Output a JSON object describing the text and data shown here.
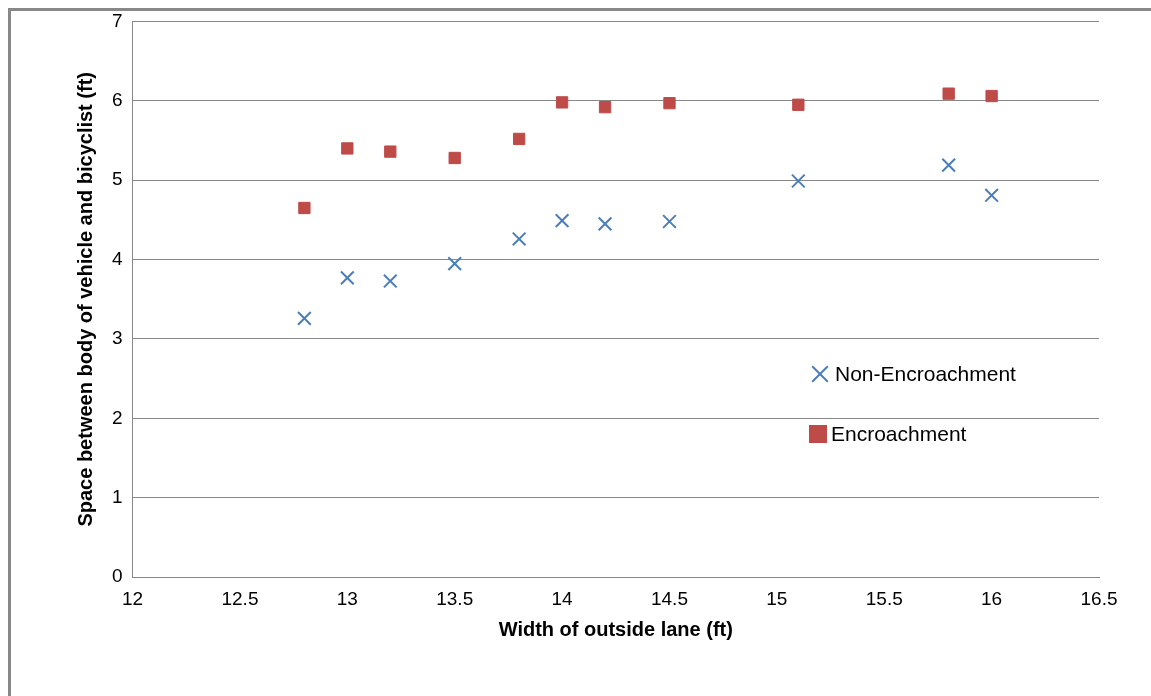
{
  "chart_data": {
    "type": "scatter",
    "xlabel": "Width of outside lane (ft)",
    "ylabel": "Space between body of vehicle and bicyclist (ft)",
    "xlim": [
      12,
      16.5
    ],
    "xticks": [
      12,
      12.5,
      13,
      13.5,
      14,
      14.5,
      15,
      15.5,
      16,
      16.5
    ],
    "ylim": [
      0,
      7
    ],
    "yticks": [
      0,
      1,
      2,
      3,
      4,
      5,
      6,
      7
    ],
    "grid": "y",
    "legend": "right",
    "x": [
      12.8,
      13.0,
      13.2,
      13.5,
      13.8,
      14.0,
      14.2,
      14.5,
      15.1,
      15.8,
      16.0
    ],
    "series": [
      {
        "name": "Non-Encroachment",
        "color": "#4a7ebb",
        "marker": "cross",
        "values": [
          3.26,
          3.77,
          3.73,
          3.95,
          4.26,
          4.49,
          4.45,
          4.48,
          4.99,
          5.19,
          4.81
        ]
      },
      {
        "name": "Encroachment",
        "color": "#be4b48",
        "marker": "square",
        "values": [
          4.65,
          5.4,
          5.36,
          5.28,
          5.52,
          5.98,
          5.92,
          5.97,
          5.95,
          6.09,
          6.06
        ]
      }
    ]
  }
}
